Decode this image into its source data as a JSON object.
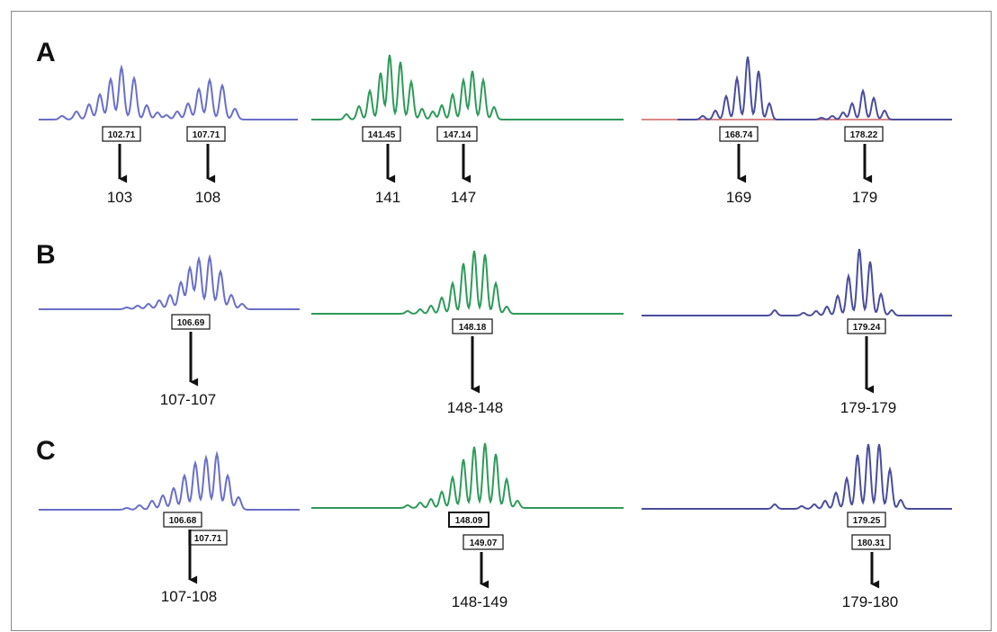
{
  "panels": [
    {
      "letter": "A",
      "traces": [
        {
          "color": "#6a6fc8",
          "peak_labels": [
            "102.71",
            "107.71"
          ],
          "alleles": [
            "103",
            "108"
          ]
        },
        {
          "color": "#2e9a5a",
          "peak_labels": [
            "141.45",
            "147.14"
          ],
          "alleles": [
            "141",
            "147"
          ]
        },
        {
          "color": "#d06060",
          "peak_color": "#4a4d9c",
          "peak_labels": [
            "168.74",
            "178.22"
          ],
          "alleles": [
            "169",
            "179"
          ]
        }
      ]
    },
    {
      "letter": "B",
      "traces": [
        {
          "color": "#6a6fc8",
          "peak_labels": [
            "106.69"
          ],
          "alleles": [
            "107-107"
          ]
        },
        {
          "color": "#2e9a5a",
          "peak_labels": [
            "148.18"
          ],
          "alleles": [
            "148-148"
          ]
        },
        {
          "color": "#4a4d9c",
          "peak_labels": [
            "179.24"
          ],
          "alleles": [
            "179-179"
          ]
        }
      ]
    },
    {
      "letter": "C",
      "traces": [
        {
          "color": "#6a6fc8",
          "peak_labels": [
            "106.68",
            "107.71"
          ],
          "alleles": [
            "107-108"
          ]
        },
        {
          "color": "#2e9a5a",
          "peak_labels": [
            "148.09",
            "149.07"
          ],
          "alleles": [
            "148-149"
          ]
        },
        {
          "color": "#4a4d9c",
          "peak_labels": [
            "179.25",
            "180.31"
          ],
          "alleles": [
            "179-180"
          ]
        }
      ]
    }
  ]
}
